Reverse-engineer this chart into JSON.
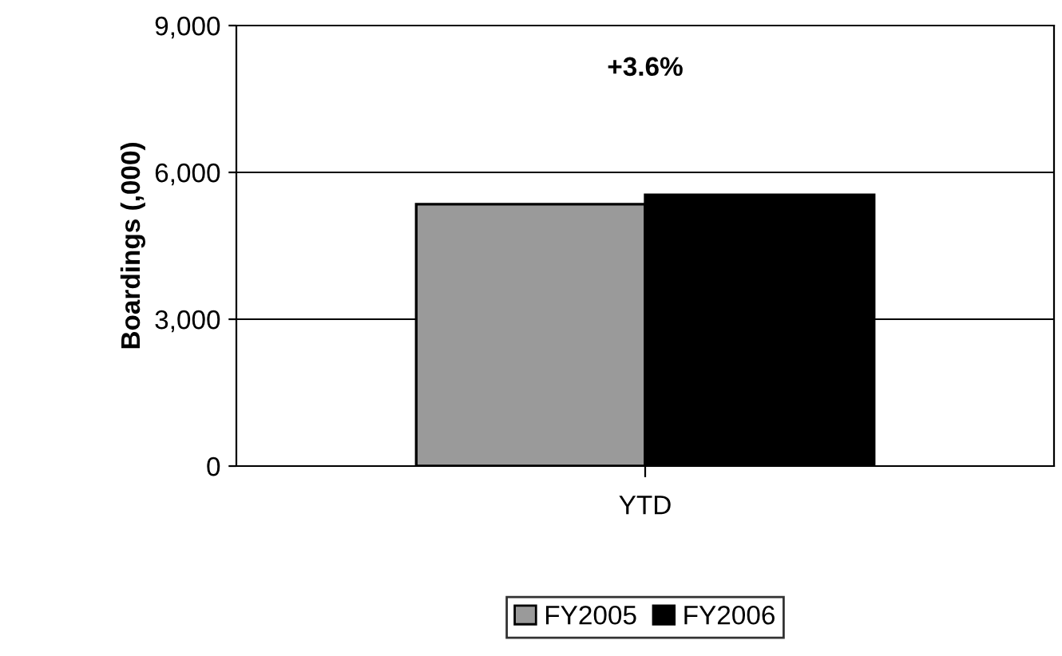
{
  "chart_data": {
    "type": "bar",
    "ylabel": "Boardings (,000)",
    "categories": [
      "YTD"
    ],
    "series": [
      {
        "name": "FY2005",
        "color": "#9a9a9a",
        "values": [
          5350
        ]
      },
      {
        "name": "FY2006",
        "color": "#000000",
        "values": [
          5540
        ]
      }
    ],
    "ylim": [
      0,
      9000
    ],
    "yticks": [
      {
        "value": 0,
        "label": "0"
      },
      {
        "value": 3000,
        "label": "3,000"
      },
      {
        "value": 6000,
        "label": "6,000"
      },
      {
        "value": 9000,
        "label": "9,000"
      }
    ],
    "grid": "y",
    "legend": "bottom",
    "annotations": [
      "+3.6%"
    ]
  }
}
